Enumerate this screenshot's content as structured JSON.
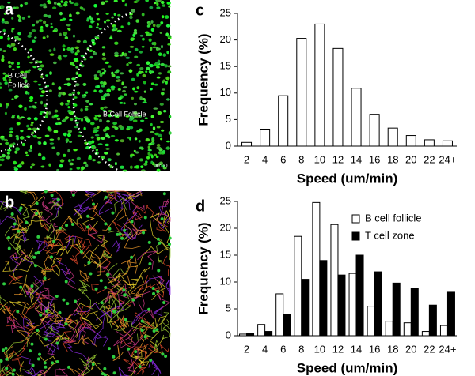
{
  "panels": {
    "a": "a",
    "b": "b",
    "c": "c",
    "d": "d"
  },
  "image_a": {
    "label_left": [
      "B Cell",
      "Follicle"
    ],
    "label_right": "B Cell Follicle",
    "timestamp": "00:00"
  },
  "chart_data": [
    {
      "type": "bar",
      "xlabel": "Speed (um/min)",
      "ylabel": "Frequency (%)",
      "categories": [
        "2",
        "4",
        "6",
        "8",
        "10",
        "12",
        "14",
        "16",
        "18",
        "20",
        "22",
        "24+"
      ],
      "series": [
        {
          "color": "#ffffff",
          "values": [
            0.7,
            3.2,
            9.5,
            20.3,
            23,
            18.4,
            10.9,
            6,
            3.4,
            2,
            1.2,
            1.0
          ]
        }
      ],
      "ylim": [
        0,
        25
      ],
      "yticks": [
        0,
        5,
        10,
        15,
        20,
        25
      ]
    },
    {
      "type": "bar",
      "xlabel": "Speed (um/min)",
      "ylabel": "Frequency (%)",
      "categories": [
        "2",
        "4",
        "6",
        "8",
        "10",
        "12",
        "14",
        "16",
        "18",
        "20",
        "22",
        "24+"
      ],
      "series": [
        {
          "name": "B cell follicle",
          "color": "#ffffff",
          "values": [
            0.3,
            2.1,
            7.8,
            18.5,
            24.8,
            20.7,
            11.6,
            5.5,
            2.7,
            2.4,
            0.8,
            1.9
          ]
        },
        {
          "name": "T cell zone",
          "color": "#000000",
          "values": [
            0.4,
            0.8,
            4,
            10.5,
            14,
            11.3,
            15,
            11.9,
            9.8,
            8.8,
            5.7,
            8.1
          ]
        }
      ],
      "ylim": [
        0,
        25
      ],
      "yticks": [
        0,
        5,
        10,
        15,
        20,
        25
      ],
      "legend": "top-right"
    }
  ]
}
